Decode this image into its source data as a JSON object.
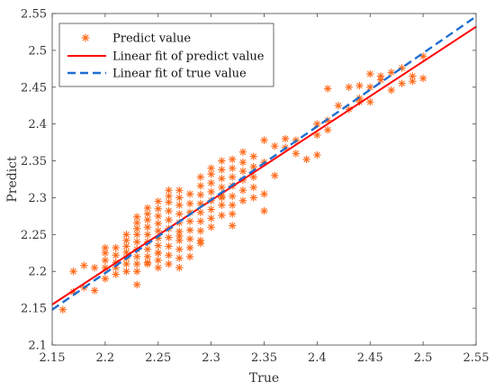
{
  "chart_data": {
    "type": "scatter",
    "title": "",
    "xlabel": "True",
    "ylabel": "Predict",
    "xlim": [
      2.15,
      2.55
    ],
    "ylim": [
      2.1,
      2.55
    ],
    "xticks": [
      "2.15",
      "2.2",
      "2.25",
      "2.3",
      "2.35",
      "2.4",
      "2.45",
      "2.5",
      "2.55"
    ],
    "yticks": [
      "2.1",
      "2.15",
      "2.2",
      "2.25",
      "2.3",
      "2.35",
      "2.4",
      "2.45",
      "2.5",
      "2.55"
    ],
    "grid": false,
    "legend_position": "top-left",
    "colors": {
      "scatter": "#ff6a1a",
      "fit_predict": "#ff0000",
      "fit_true": "#1f6fd0",
      "axis": "#444444"
    },
    "series": [
      {
        "name": "Predict value",
        "kind": "scatter",
        "marker": "asterisk",
        "x": [
          2.16,
          2.17,
          2.17,
          2.18,
          2.18,
          2.19,
          2.19,
          2.2,
          2.2,
          2.2,
          2.2,
          2.2,
          2.21,
          2.21,
          2.21,
          2.21,
          2.21,
          2.22,
          2.22,
          2.22,
          2.22,
          2.22,
          2.22,
          2.22,
          2.23,
          2.23,
          2.23,
          2.23,
          2.23,
          2.23,
          2.23,
          2.23,
          2.23,
          2.24,
          2.24,
          2.24,
          2.24,
          2.24,
          2.24,
          2.24,
          2.24,
          2.24,
          2.25,
          2.25,
          2.25,
          2.25,
          2.25,
          2.25,
          2.25,
          2.25,
          2.25,
          2.25,
          2.26,
          2.26,
          2.26,
          2.26,
          2.26,
          2.26,
          2.26,
          2.26,
          2.26,
          2.26,
          2.27,
          2.27,
          2.27,
          2.27,
          2.27,
          2.27,
          2.27,
          2.27,
          2.27,
          2.27,
          2.28,
          2.28,
          2.28,
          2.28,
          2.28,
          2.28,
          2.28,
          2.28,
          2.29,
          2.29,
          2.29,
          2.29,
          2.29,
          2.29,
          2.29,
          2.29,
          2.3,
          2.3,
          2.3,
          2.3,
          2.3,
          2.3,
          2.3,
          2.3,
          2.31,
          2.31,
          2.31,
          2.31,
          2.31,
          2.31,
          2.31,
          2.32,
          2.32,
          2.32,
          2.32,
          2.32,
          2.32,
          2.32,
          2.33,
          2.33,
          2.33,
          2.33,
          2.33,
          2.33,
          2.34,
          2.34,
          2.34,
          2.34,
          2.34,
          2.35,
          2.35,
          2.35,
          2.35,
          2.36,
          2.36,
          2.37,
          2.37,
          2.38,
          2.38,
          2.39,
          2.4,
          2.4,
          2.4,
          2.41,
          2.41,
          2.41,
          2.42,
          2.43,
          2.43,
          2.44,
          2.44,
          2.44,
          2.45,
          2.45,
          2.45,
          2.46,
          2.46,
          2.47,
          2.47,
          2.48,
          2.48,
          2.49,
          2.49,
          2.5,
          2.5,
          2.24,
          2.25,
          2.29,
          2.32,
          2.27,
          2.31,
          2.23
        ],
        "y": [
          2.148,
          2.172,
          2.2,
          2.178,
          2.208,
          2.174,
          2.205,
          2.19,
          2.205,
          2.215,
          2.225,
          2.232,
          2.196,
          2.205,
          2.212,
          2.222,
          2.232,
          2.2,
          2.21,
          2.218,
          2.226,
          2.234,
          2.242,
          2.25,
          2.2,
          2.21,
          2.22,
          2.23,
          2.24,
          2.25,
          2.258,
          2.266,
          2.274,
          2.21,
          2.22,
          2.23,
          2.24,
          2.25,
          2.26,
          2.27,
          2.278,
          2.286,
          2.205,
          2.215,
          2.225,
          2.235,
          2.245,
          2.255,
          2.265,
          2.275,
          2.285,
          2.295,
          2.21,
          2.222,
          2.234,
          2.246,
          2.258,
          2.27,
          2.282,
          2.294,
          2.302,
          2.31,
          2.205,
          2.218,
          2.23,
          2.242,
          2.254,
          2.266,
          2.278,
          2.29,
          2.3,
          2.31,
          2.22,
          2.232,
          2.244,
          2.256,
          2.268,
          2.28,
          2.292,
          2.305,
          2.242,
          2.255,
          2.268,
          2.28,
          2.292,
          2.304,
          2.316,
          2.328,
          2.26,
          2.272,
          2.284,
          2.296,
          2.308,
          2.32,
          2.332,
          2.34,
          2.276,
          2.29,
          2.302,
          2.314,
          2.326,
          2.338,
          2.35,
          2.278,
          2.29,
          2.302,
          2.316,
          2.328,
          2.34,
          2.352,
          2.296,
          2.31,
          2.324,
          2.336,
          2.348,
          2.362,
          2.3,
          2.314,
          2.328,
          2.342,
          2.356,
          2.282,
          2.305,
          2.348,
          2.378,
          2.33,
          2.37,
          2.368,
          2.38,
          2.36,
          2.378,
          2.352,
          2.358,
          2.385,
          2.4,
          2.392,
          2.405,
          2.448,
          2.425,
          2.42,
          2.45,
          2.435,
          2.452,
          2.43,
          2.43,
          2.45,
          2.468,
          2.46,
          2.465,
          2.446,
          2.47,
          2.455,
          2.476,
          2.458,
          2.465,
          2.492,
          2.462,
          2.212,
          2.225,
          2.238,
          2.262,
          2.248,
          2.3,
          2.182
        ],
        "count": 460
      },
      {
        "name": "Linear fit of predict value",
        "kind": "line",
        "x": [
          2.15,
          2.55
        ],
        "y": [
          2.155,
          2.532
        ]
      },
      {
        "name": "Linear fit of true value",
        "kind": "line",
        "style": "dashed",
        "x": [
          2.15,
          2.55
        ],
        "y": [
          2.148,
          2.546
        ]
      }
    ]
  }
}
